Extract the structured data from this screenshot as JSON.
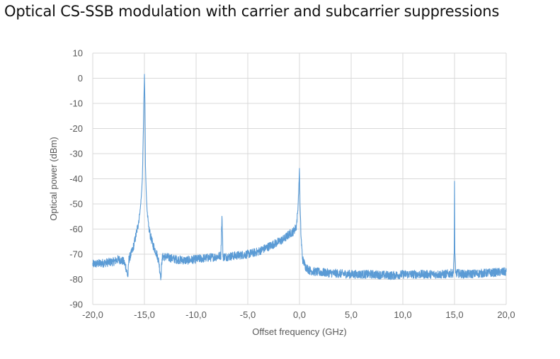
{
  "chart_data": {
    "type": "line",
    "title": "Optical CS-SSB modulation with carrier and subcarrier suppressions",
    "xlabel": "Offset frequency (GHz)",
    "ylabel": "Optical power (dBm)",
    "xlim": [
      -20,
      20
    ],
    "ylim": [
      -90,
      10
    ],
    "x_ticks": [
      -20,
      -15,
      -10,
      -5,
      0,
      5,
      10,
      15,
      20
    ],
    "x_tick_labels": [
      "-20,0",
      "-15,0",
      "-10,0",
      "-5,0",
      "0,0",
      "5,0",
      "10,0",
      "15,0",
      "20,0"
    ],
    "y_ticks": [
      10,
      0,
      -10,
      -20,
      -30,
      -40,
      -50,
      -60,
      -70,
      -80,
      -90
    ],
    "y_tick_labels": [
      "10",
      "0",
      "-10",
      "-20",
      "-30",
      "-40",
      "-50",
      "-60",
      "-70",
      "-80",
      "-90"
    ],
    "grid": true,
    "legend": "none",
    "series": [
      {
        "color": "#5b9bd5",
        "x": [
          -20.0,
          -19.0,
          -18.0,
          -17.5,
          -17.0,
          -16.8,
          -16.6,
          -16.5,
          -16.2,
          -16.0,
          -15.8,
          -15.6,
          -15.4,
          -15.3,
          -15.2,
          -15.1,
          -15.05,
          -15.0,
          -14.95,
          -14.9,
          -14.8,
          -14.7,
          -14.6,
          -14.4,
          -14.2,
          -14.0,
          -13.8,
          -13.6,
          -13.5,
          -13.4,
          -13.3,
          -13.2,
          -13.0,
          -12.0,
          -11.0,
          -10.0,
          -9.0,
          -8.0,
          -7.6,
          -7.55,
          -7.5,
          -7.45,
          -7.4,
          -7.0,
          -6.0,
          -5.0,
          -4.0,
          -3.0,
          -2.0,
          -1.5,
          -1.0,
          -0.6,
          -0.3,
          -0.15,
          -0.05,
          0.0,
          0.05,
          0.15,
          0.3,
          0.6,
          1.0,
          1.5,
          3.0,
          5.0,
          7.0,
          9.0,
          10.0,
          12.0,
          14.0,
          14.9,
          14.97,
          15.0,
          15.03,
          15.1,
          16.0,
          18.0,
          20.0
        ],
        "y": [
          -74,
          -73.5,
          -73,
          -72,
          -73,
          -75,
          -79,
          -72,
          -69,
          -66,
          -62,
          -58,
          -52,
          -47,
          -40,
          -20,
          -8,
          1,
          -10,
          -35,
          -48,
          -55,
          -59,
          -63,
          -66,
          -68,
          -70,
          -73,
          -77,
          -79,
          -72,
          -71,
          -71,
          -72,
          -72.5,
          -72,
          -71.5,
          -71,
          -70.5,
          -62,
          -55,
          -62,
          -71,
          -71,
          -70.5,
          -70,
          -69,
          -67,
          -65,
          -64,
          -62,
          -61,
          -59,
          -52,
          -42,
          -36,
          -50,
          -63,
          -72,
          -75,
          -76.5,
          -77,
          -77.5,
          -78,
          -78,
          -78.5,
          -78,
          -78,
          -78,
          -77.5,
          -68,
          -41,
          -68,
          -77.5,
          -78,
          -77.5,
          -77
        ]
      }
    ]
  }
}
